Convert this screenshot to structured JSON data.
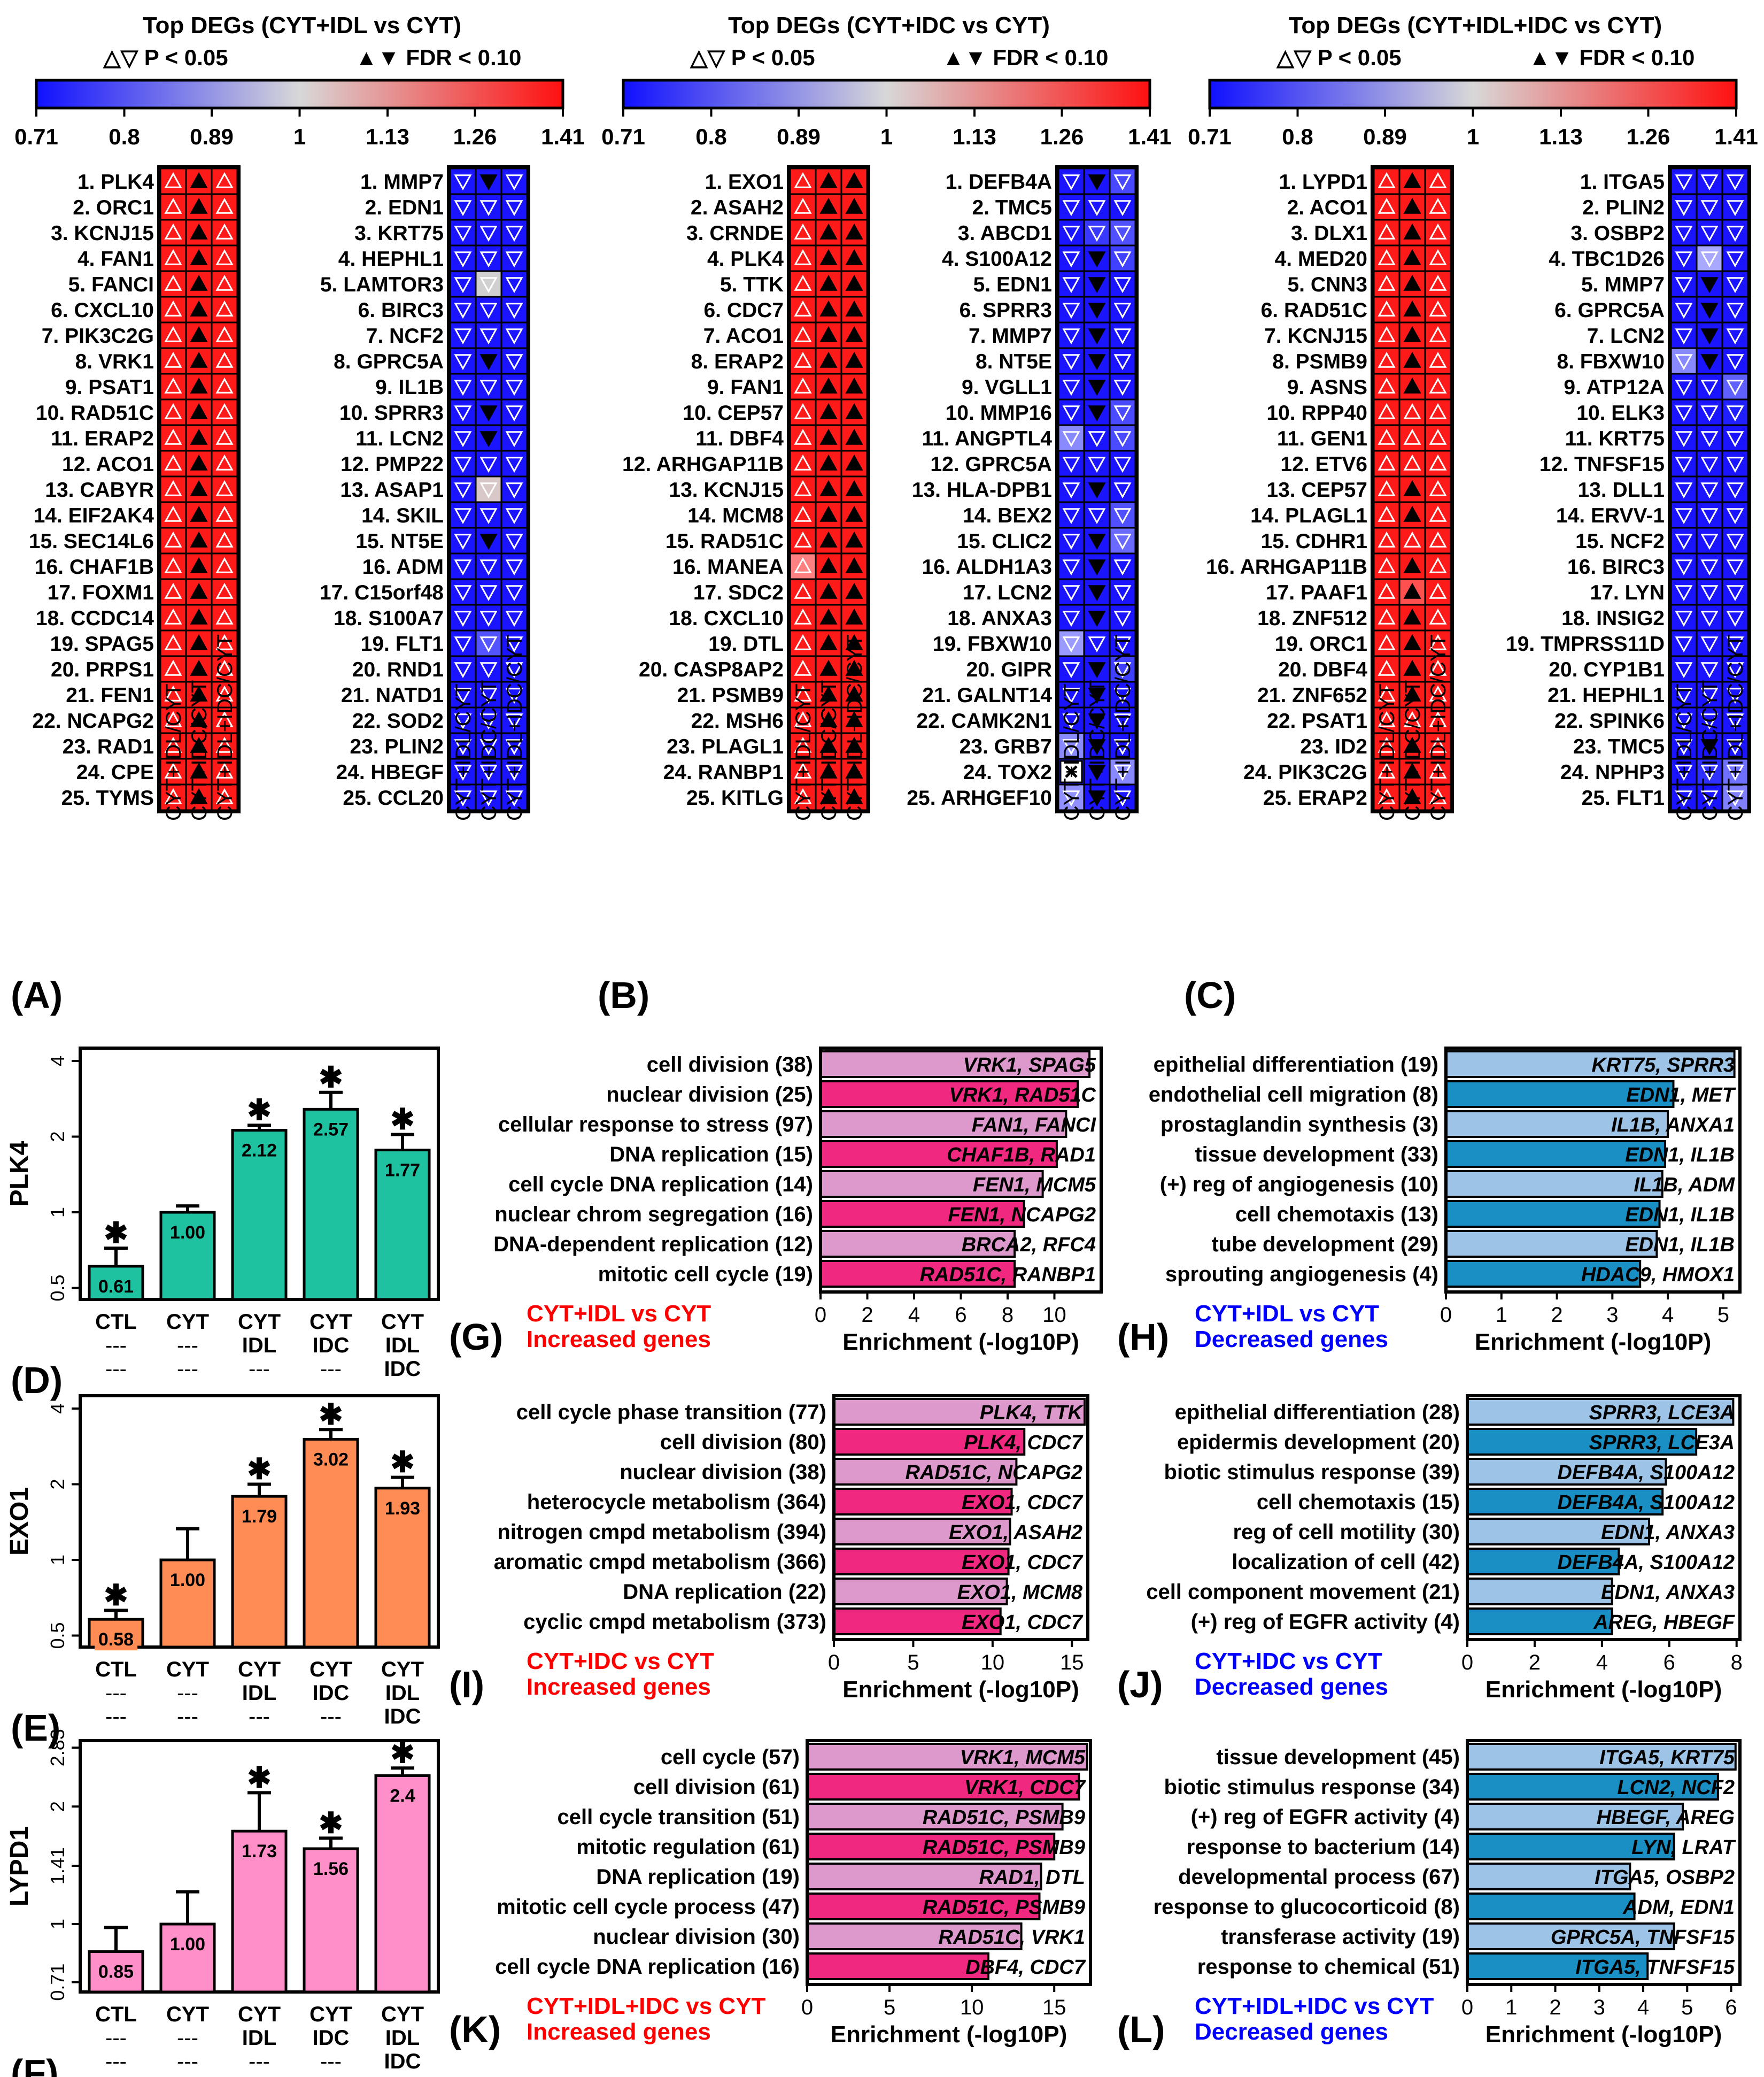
{
  "colors": {
    "up": "#ff1a1a",
    "down": "#1a14ff",
    "bar_increase_dark": "#f0287f",
    "bar_increase_light": "#dd99cc",
    "bar_decrease_dark": "#1a8fc4",
    "bar_decrease_light": "#9dc3e6",
    "plk4": "#1fc2a0",
    "exo1": "#ff8c55",
    "lypd1": "#ff8fc8",
    "label_red": "#ff0000",
    "label_blue": "#0000ff"
  },
  "heatmap_panels": [
    {
      "label": "(A)",
      "title": "Top DEGs (CYT+IDL vs CYT)",
      "legend_open": "△▽ P < 0.05",
      "legend_filled": "▲▼ FDR < 0.10",
      "scale_ticks": [
        "0.71",
        "0.8",
        "0.89",
        "1",
        "1.13",
        "1.26",
        "1.41"
      ],
      "up_genes": [
        "1. PLK4",
        "2. ORC1",
        "3. KCNJ15",
        "4. FAN1",
        "5. FANCI",
        "6. CXCL10",
        "7. PIK3C2G",
        "8. VRK1",
        "9. PSAT1",
        "10. RAD51C",
        "11. ERAP2",
        "12. ACO1",
        "13. CABYR",
        "14. EIF2AK4",
        "15. SEC14L6",
        "16. CHAF1B",
        "17. FOXM1",
        "18. CCDC14",
        "19. SPAG5",
        "20. PRPS1",
        "21. FEN1",
        "22. NCAPG2",
        "23. RAD1",
        "24. CPE",
        "25. TYMS"
      ],
      "down_genes": [
        "1. MMP7",
        "2. EDN1",
        "3. KRT75",
        "4. HEPHL1",
        "5. LAMTOR3",
        "6. BIRC3",
        "7. NCF2",
        "8. GPRC5A",
        "9. IL1B",
        "10. SPRR3",
        "11. LCN2",
        "12. PMP22",
        "13. ASAP1",
        "14. SKIL",
        "15. NT5E",
        "16. ADM",
        "17. C15orf48",
        "18. S100A7",
        "19. FLT1",
        "20. RND1",
        "21. NATD1",
        "22. SOD2",
        "23. PLIN2",
        "24. HBEGF",
        "25. CCL20"
      ],
      "columns": [
        "CYT+IDL/CYT",
        "CYT+IDC/CYT",
        "CYT+IDL+IDC/CYT"
      ]
    },
    {
      "label": "(B)",
      "title": "Top DEGs (CYT+IDC vs CYT)",
      "legend_open": "△▽ P < 0.05",
      "legend_filled": "▲▼ FDR < 0.10",
      "scale_ticks": [
        "0.71",
        "0.8",
        "0.89",
        "1",
        "1.13",
        "1.26",
        "1.41"
      ],
      "up_genes": [
        "1. EXO1",
        "2. ASAH2",
        "3. CRNDE",
        "4. PLK4",
        "5. TTK",
        "6. CDC7",
        "7. ACO1",
        "8. ERAP2",
        "9. FAN1",
        "10. CEP57",
        "11. DBF4",
        "12. ARHGAP11B",
        "13. KCNJ15",
        "14. MCM8",
        "15. RAD51C",
        "16. MANEA",
        "17. SDC2",
        "18. CXCL10",
        "19. DTL",
        "20. CASP8AP2",
        "21. PSMB9",
        "22. MSH6",
        "23. PLAGL1",
        "24. RANBP1",
        "25. KITLG"
      ],
      "down_genes": [
        "1. DEFB4A",
        "2. TMC5",
        "3. ABCD1",
        "4. S100A12",
        "5. EDN1",
        "6. SPRR3",
        "7. MMP7",
        "8. NT5E",
        "9. VGLL1",
        "10. MMP16",
        "11. ANGPTL4",
        "12. GPRC5A",
        "13. HLA-DPB1",
        "14. BEX2",
        "15. CLIC2",
        "16. ALDH1A3",
        "17. LCN2",
        "18. ANXA3",
        "19. FBXW10",
        "20. GIPR",
        "21. GALNT14",
        "22. CAMK2N1",
        "23. GRB7",
        "24. TOX2",
        "25. ARHGEF10"
      ],
      "columns": [
        "CYT+IDL/CYT",
        "CYT+IDC/CYT",
        "CYT+IDL+IDC/CYT"
      ]
    },
    {
      "label": "(C)",
      "title": "Top DEGs (CYT+IDL+IDC vs CYT)",
      "legend_open": "△▽ P < 0.05",
      "legend_filled": "▲▼ FDR < 0.10",
      "scale_ticks": [
        "0.71",
        "0.8",
        "0.89",
        "1",
        "1.13",
        "1.26",
        "1.41"
      ],
      "up_genes": [
        "1. LYPD1",
        "2. ACO1",
        "3. DLX1",
        "4. MED20",
        "5. CNN3",
        "6. RAD51C",
        "7. KCNJ15",
        "8. PSMB9",
        "9. ASNS",
        "10. RPP40",
        "11. GEN1",
        "12. ETV6",
        "13. CEP57",
        "14. PLAGL1",
        "15. CDHR1",
        "16. ARHGAP11B",
        "17. PAAF1",
        "18. ZNF512",
        "19. ORC1",
        "20. DBF4",
        "21. ZNF652",
        "22. PSAT1",
        "23. ID2",
        "24. PIK3C2G",
        "25. ERAP2"
      ],
      "down_genes": [
        "1. ITGA5",
        "2. PLIN2",
        "3. OSBP2",
        "4. TBC1D26",
        "5. MMP7",
        "6. GPRC5A",
        "7. LCN2",
        "8. FBXW10",
        "9. ATP12A",
        "10. ELK3",
        "11. KRT75",
        "12. TNFSF15",
        "13. DLL1",
        "14. ERVV-1",
        "15. NCF2",
        "16. BIRC3",
        "17. LYN",
        "18. INSIG2",
        "19. TMPRSS11D",
        "20. CYP1B1",
        "21. HEPHL1",
        "22. SPINK6",
        "23. TMC5",
        "24. NPHP3",
        "25. FLT1"
      ],
      "columns": [
        "CYT+IDL/CYT",
        "CYT+IDC/CYT",
        "CYT+IDL+IDC/CYT"
      ]
    }
  ],
  "chart_data": [
    {
      "panel": "(D)",
      "type": "bar",
      "ylabel": "PLK4",
      "categories": [
        "CTL",
        "CYT",
        "CYT IDL",
        "CYT IDC",
        "CYT IDL IDC"
      ],
      "cat_lines": [
        [
          "CTL",
          "---",
          "---"
        ],
        [
          "CYT",
          "---",
          "---"
        ],
        [
          "CYT",
          "IDL",
          "---"
        ],
        [
          "CYT",
          "IDC",
          "---"
        ],
        [
          "CYT",
          "IDL",
          "IDC"
        ]
      ],
      "values": [
        0.61,
        1.0,
        2.12,
        2.57,
        1.77
      ],
      "value_labels": [
        "0.61",
        "1.00",
        "2.12",
        "2.57",
        "1.77"
      ],
      "err_hi": [
        0.72,
        1.06,
        2.22,
        3.0,
        2.04
      ],
      "significant": [
        true,
        false,
        true,
        true,
        true
      ],
      "yticks": [
        "0.5",
        "1",
        "2",
        "4"
      ],
      "ytick_values": [
        0.5,
        1,
        2,
        4
      ],
      "ylim": [
        0.45,
        4.5
      ],
      "scale": "log2"
    },
    {
      "panel": "(E)",
      "type": "bar",
      "ylabel": "EXO1",
      "categories": [
        "CTL",
        "CYT",
        "CYT IDL",
        "CYT IDC",
        "CYT IDL IDC"
      ],
      "cat_lines": [
        [
          "CTL",
          "---",
          "---"
        ],
        [
          "CYT",
          "---",
          "---"
        ],
        [
          "CYT",
          "IDL",
          "---"
        ],
        [
          "CYT",
          "IDC",
          "---"
        ],
        [
          "CYT",
          "IDL",
          "IDC"
        ]
      ],
      "values": [
        0.58,
        1.0,
        1.79,
        3.02,
        1.93
      ],
      "value_labels": [
        "0.58",
        "1.00",
        "1.79",
        "3.02",
        "1.93"
      ],
      "err_hi": [
        0.63,
        1.33,
        2.0,
        3.3,
        2.13
      ],
      "significant": [
        true,
        false,
        true,
        true,
        true
      ],
      "yticks": [
        "0.5",
        "1",
        "2",
        "4"
      ],
      "ytick_values": [
        0.5,
        1,
        2,
        4
      ],
      "ylim": [
        0.45,
        4.5
      ],
      "scale": "log2"
    },
    {
      "panel": "(F)",
      "type": "bar",
      "ylabel": "LYPD1",
      "categories": [
        "CTL",
        "CYT",
        "CYT IDL",
        "CYT IDC",
        "CYT IDL IDC"
      ],
      "cat_lines": [
        [
          "CTL",
          "---",
          "---"
        ],
        [
          "CYT",
          "---",
          "---"
        ],
        [
          "CYT",
          "IDL",
          "---"
        ],
        [
          "CYT",
          "IDC",
          "---"
        ],
        [
          "CYT",
          "IDL",
          "IDC"
        ]
      ],
      "values": [
        0.85,
        1.0,
        1.73,
        1.56,
        2.4
      ],
      "value_labels": [
        "0.85",
        "1.00",
        "1.73",
        "1.56",
        "2.4"
      ],
      "err_hi": [
        0.98,
        1.21,
        2.17,
        1.66,
        2.51
      ],
      "significant": [
        false,
        false,
        true,
        true,
        true
      ],
      "yticks": [
        "0.71",
        "1",
        "1.41",
        "2",
        "2.83"
      ],
      "ytick_values": [
        0.71,
        1,
        1.41,
        2,
        2.83
      ],
      "ylim": [
        0.67,
        2.95
      ],
      "scale": "log2"
    },
    {
      "panel": "(G)",
      "type": "bar",
      "title": "CYT+IDL vs CYT",
      "subtitle": "Increased genes",
      "xlabel": "Enrichment (-log10P)",
      "title_color": "red",
      "xmax": 12,
      "xticks": [
        "0",
        "2",
        "4",
        "6",
        "8",
        "10"
      ],
      "xtick_values": [
        0,
        2,
        4,
        6,
        8,
        10
      ],
      "categories": [
        "cell division (38)",
        "nuclear division (25)",
        "cellular response to stress (97)",
        "DNA replication (15)",
        "cell cycle DNA replication (14)",
        "nuclear chrom segregation (16)",
        "DNA-dependent replication (12)",
        "mitotic cell cycle (19)"
      ],
      "values": [
        11.5,
        11.0,
        10.5,
        10.1,
        9.5,
        8.7,
        8.3,
        8.3
      ],
      "genes_a": [
        "VRK1, ",
        "VRK1, ",
        "FAN1, ",
        "CHAF1B, ",
        "FEN1, ",
        "FEN1, ",
        "BRCA2, ",
        "RAD51C, "
      ],
      "genes_b": [
        "SPAG5",
        "RAD51C",
        "FANCI",
        "RAD1",
        "MCM5",
        "NCAPG2",
        "RFC4",
        "RANBP1"
      ]
    },
    {
      "panel": "(H)",
      "type": "bar",
      "title": "CYT+IDL vs CYT",
      "subtitle": "Decreased genes",
      "xlabel": "Enrichment (-log10P)",
      "title_color": "blue",
      "xmax": 5.3,
      "xticks": [
        "0",
        "1",
        "2",
        "3",
        "4",
        "5"
      ],
      "xtick_values": [
        0,
        1,
        2,
        3,
        4,
        5
      ],
      "categories": [
        "epithelial differentiation (19)",
        "endothelial cell migration (8)",
        "prostaglandin synthesis (3)",
        "tissue development (33)",
        "(+) reg of angiogenesis (10)",
        "cell chemotaxis (13)",
        "tube development (29)",
        "sprouting angiogenesis (4)"
      ],
      "values": [
        5.2,
        4.1,
        4.0,
        3.95,
        3.9,
        3.85,
        3.8,
        3.5
      ],
      "genes_a": [
        "KRT75, ",
        "EDN1, ",
        "IL1B, ",
        "EDN1, ",
        "IL1B, ",
        "EDN1, ",
        "EDN1, ",
        "HDAC9, "
      ],
      "genes_b": [
        "SPRR3",
        "MET",
        "ANXA1",
        "IL1B",
        "ADM",
        "IL1B",
        "IL1B",
        "HMOX1"
      ]
    },
    {
      "panel": "(I)",
      "type": "bar",
      "title": "CYT+IDC vs CYT",
      "subtitle": "Increased genes",
      "xlabel": "Enrichment (-log10P)",
      "title_color": "red",
      "xmax": 16,
      "xticks": [
        "0",
        "5",
        "10",
        "15"
      ],
      "xtick_values": [
        0,
        5,
        10,
        15
      ],
      "categories": [
        "cell cycle phase transition (77)",
        "cell division (80)",
        "nuclear division (38)",
        "heterocycle metabolism (364)",
        "nitrogen cmpd metabolism (394)",
        "aromatic cmpd metabolism (366)",
        "DNA replication (22)",
        "cyclic cmpd metabolism (373)"
      ],
      "values": [
        15.8,
        12.0,
        11.5,
        11.2,
        11.1,
        11.0,
        10.9,
        10.5
      ],
      "genes_a": [
        "PLK4, ",
        "PLK4, ",
        "RAD51C, ",
        "EXO1, ",
        "EXO1, ",
        "EXO1, ",
        "EXO1, ",
        "EXO1, "
      ],
      "genes_b": [
        "TTK",
        "CDC7",
        "NCAPG2",
        "CDC7",
        "ASAH2",
        "CDC7",
        "MCM8",
        "CDC7"
      ]
    },
    {
      "panel": "(J)",
      "type": "bar",
      "title": "CYT+IDC vs CYT",
      "subtitle": "Decreased genes",
      "xlabel": "Enrichment (-log10P)",
      "title_color": "blue",
      "xmax": 8.1,
      "xticks": [
        "0",
        "2",
        "4",
        "6",
        "8"
      ],
      "xtick_values": [
        0,
        2,
        4,
        6,
        8
      ],
      "categories": [
        "epithelial differentiation (28)",
        "epidermis development (20)",
        "biotic stimulus response (39)",
        "cell chemotaxis (15)",
        "reg of cell motility (30)",
        "localization of cell (42)",
        "cell component movement (21)",
        "(+) reg of EGFR activity (4)"
      ],
      "values": [
        7.9,
        6.8,
        5.9,
        5.8,
        5.4,
        4.5,
        4.3,
        4.3
      ],
      "genes_a": [
        "SPRR3, ",
        "SPRR3, ",
        "DEFB4A, ",
        "DEFB4A, ",
        "EDN1, ",
        "DEFB4A, ",
        "EDN1, ",
        "AREG, "
      ],
      "genes_b": [
        "LCE3A",
        "LCE3A",
        "S100A12",
        "S100A12",
        "ANXA3",
        "S100A12",
        "ANXA3",
        "HBEGF"
      ]
    },
    {
      "panel": "(K)",
      "type": "bar",
      "title": "CYT+IDL+IDC vs CYT",
      "subtitle": "Increased genes",
      "xlabel": "Enrichment (-log10P)",
      "title_color": "red",
      "xmax": 17.2,
      "xticks": [
        "0",
        "5",
        "10",
        "15"
      ],
      "xtick_values": [
        0,
        5,
        10,
        15
      ],
      "categories": [
        "cell cycle (57)",
        "cell division (61)",
        "cell cycle transition (51)",
        "mitotic regulation (61)",
        "DNA replication (19)",
        "mitotic cell cycle process (47)",
        "nuclear division (30)",
        "cell cycle DNA replication (16)"
      ],
      "values": [
        17.0,
        16.5,
        15.5,
        15.0,
        14.2,
        14.1,
        13.0,
        11.0
      ],
      "genes_a": [
        "VRK1, ",
        "VRK1, ",
        "RAD51C, ",
        "RAD51C, ",
        "RAD1, ",
        "RAD51C, ",
        "RAD51C, ",
        "DBF4, "
      ],
      "genes_b": [
        "MCM5",
        "CDC7",
        "PSMB9",
        "PSMB9",
        "DTL",
        "PSMB9",
        "VRK1",
        "CDC7"
      ]
    },
    {
      "panel": "(L)",
      "type": "bar",
      "title": "CYT+IDL+IDC vs CYT",
      "subtitle": "Decreased genes",
      "xlabel": "Enrichment (-log10P)",
      "title_color": "blue",
      "xmax": 6.2,
      "xticks": [
        "0",
        "1",
        "2",
        "3",
        "4",
        "5",
        "6"
      ],
      "xtick_values": [
        0,
        1,
        2,
        3,
        4,
        5,
        6
      ],
      "categories": [
        "tissue development (45)",
        "biotic stimulus response (34)",
        "(+) reg of EGFR activity (4)",
        "response to bacterium (14)",
        "developmental process (67)",
        "response to glucocorticoid (8)",
        "transferase activity (19)",
        "response to chemical (51)"
      ],
      "values": [
        6.1,
        5.7,
        4.9,
        4.7,
        3.7,
        3.8,
        4.7,
        4.1
      ],
      "genes_a": [
        "ITGA5, ",
        "LCN2, ",
        "HBEGF, ",
        "LYN, ",
        "ITGA5, ",
        "ADM, ",
        "GPRC5A, ",
        "ITGA5, "
      ],
      "genes_b": [
        "KRT75",
        "NCF2",
        "AREG",
        "LRAT",
        "OSBP2",
        "EDN1",
        "TNFSF15",
        "TNFSF15"
      ]
    }
  ]
}
